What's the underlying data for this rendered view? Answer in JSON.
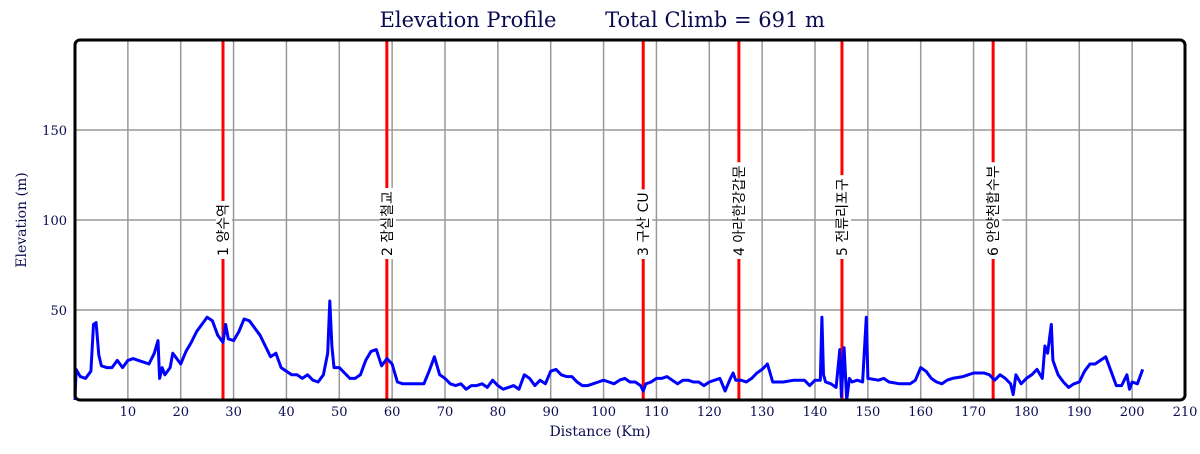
{
  "chart_data": {
    "type": "line",
    "title": "Elevation Profile",
    "subtitle": "Total Climb = 691 m",
    "xlabel": "Distance (Km)",
    "ylabel": "Elevation (m)",
    "xlim": [
      0,
      210
    ],
    "ylim": [
      0,
      200
    ],
    "xticks": [
      10,
      20,
      30,
      40,
      50,
      60,
      70,
      80,
      90,
      100,
      110,
      120,
      130,
      140,
      150,
      160,
      170,
      180,
      190,
      200,
      210
    ],
    "yticks": [
      50,
      100,
      150
    ],
    "grid": true,
    "colors": {
      "line": "#0000ff",
      "checkpoint": "#ff0000",
      "grid": "#999999"
    },
    "checkpoints": [
      {
        "km": 28.0,
        "label": "1 양수역"
      },
      {
        "km": 59.0,
        "label": "2 잠실철교"
      },
      {
        "km": 107.5,
        "label": "3 구산 CU"
      },
      {
        "km": 125.6,
        "label": "4 아라한강갑문"
      },
      {
        "km": 145.1,
        "label": "5 전류리포구"
      },
      {
        "km": 173.7,
        "label": "6 안양천합수부"
      }
    ],
    "points": [
      [
        0,
        0
      ],
      [
        0.2,
        17
      ],
      [
        1,
        13
      ],
      [
        2,
        12
      ],
      [
        3,
        16
      ],
      [
        3.5,
        42
      ],
      [
        4,
        43
      ],
      [
        4.5,
        25
      ],
      [
        5,
        19
      ],
      [
        6,
        18
      ],
      [
        7,
        18
      ],
      [
        8,
        22
      ],
      [
        9,
        18
      ],
      [
        10,
        22
      ],
      [
        11,
        23
      ],
      [
        12,
        22
      ],
      [
        13,
        21
      ],
      [
        14,
        20
      ],
      [
        15,
        26
      ],
      [
        15.7,
        33
      ],
      [
        16,
        12
      ],
      [
        16.5,
        18
      ],
      [
        17,
        14
      ],
      [
        18,
        18
      ],
      [
        18.5,
        26
      ],
      [
        19,
        24
      ],
      [
        20,
        20
      ],
      [
        21,
        27
      ],
      [
        22,
        32
      ],
      [
        23,
        38
      ],
      [
        24,
        42
      ],
      [
        25,
        46
      ],
      [
        26,
        44
      ],
      [
        27,
        36
      ],
      [
        28,
        32
      ],
      [
        28.5,
        42
      ],
      [
        29,
        34
      ],
      [
        30,
        33
      ],
      [
        31,
        38
      ],
      [
        32,
        45
      ],
      [
        33,
        44
      ],
      [
        34,
        40
      ],
      [
        35,
        36
      ],
      [
        36,
        30
      ],
      [
        37,
        24
      ],
      [
        38,
        26
      ],
      [
        39,
        18
      ],
      [
        40,
        16
      ],
      [
        41,
        14
      ],
      [
        42,
        14
      ],
      [
        43,
        12
      ],
      [
        44,
        14
      ],
      [
        45,
        11
      ],
      [
        46,
        10
      ],
      [
        47,
        14
      ],
      [
        47.8,
        26
      ],
      [
        48.2,
        55
      ],
      [
        48.6,
        30
      ],
      [
        49,
        18
      ],
      [
        50,
        18
      ],
      [
        51,
        15
      ],
      [
        52,
        12
      ],
      [
        53,
        12
      ],
      [
        54,
        14
      ],
      [
        55,
        22
      ],
      [
        56,
        27
      ],
      [
        57,
        28
      ],
      [
        58,
        19
      ],
      [
        59,
        23
      ],
      [
        60,
        20
      ],
      [
        61,
        10
      ],
      [
        62,
        9
      ],
      [
        64,
        9
      ],
      [
        66,
        9
      ],
      [
        67,
        16
      ],
      [
        68,
        24
      ],
      [
        69,
        14
      ],
      [
        70,
        12
      ],
      [
        71,
        9
      ],
      [
        72,
        8
      ],
      [
        73,
        9
      ],
      [
        74,
        6
      ],
      [
        75,
        8
      ],
      [
        76,
        8
      ],
      [
        77,
        9
      ],
      [
        78,
        7
      ],
      [
        79,
        11
      ],
      [
        80,
        8
      ],
      [
        81,
        6
      ],
      [
        82,
        7
      ],
      [
        83,
        8
      ],
      [
        84,
        6
      ],
      [
        85,
        14
      ],
      [
        86,
        12
      ],
      [
        87,
        8
      ],
      [
        88,
        11
      ],
      [
        89,
        9
      ],
      [
        90,
        16
      ],
      [
        91,
        17
      ],
      [
        92,
        14
      ],
      [
        93,
        13
      ],
      [
        94,
        13
      ],
      [
        95,
        10
      ],
      [
        96,
        8
      ],
      [
        97,
        8
      ],
      [
        98,
        9
      ],
      [
        99,
        10
      ],
      [
        100,
        11
      ],
      [
        101,
        10
      ],
      [
        102,
        9
      ],
      [
        103,
        11
      ],
      [
        104,
        12
      ],
      [
        105,
        10
      ],
      [
        106,
        10
      ],
      [
        107,
        8
      ],
      [
        107.5,
        5
      ],
      [
        108,
        9
      ],
      [
        109,
        10
      ],
      [
        110,
        12
      ],
      [
        111,
        12
      ],
      [
        112,
        13
      ],
      [
        113,
        11
      ],
      [
        114,
        9
      ],
      [
        115,
        11
      ],
      [
        116,
        11
      ],
      [
        117,
        10
      ],
      [
        118,
        10
      ],
      [
        119,
        8
      ],
      [
        120,
        10
      ],
      [
        121,
        11
      ],
      [
        122,
        12
      ],
      [
        123,
        5
      ],
      [
        124,
        12
      ],
      [
        124.5,
        15
      ],
      [
        125,
        11
      ],
      [
        126,
        11
      ],
      [
        127,
        10
      ],
      [
        128,
        12
      ],
      [
        129,
        15
      ],
      [
        130,
        17
      ],
      [
        131,
        20
      ],
      [
        131.5,
        15
      ],
      [
        132,
        10
      ],
      [
        134,
        10
      ],
      [
        136,
        11
      ],
      [
        138,
        11
      ],
      [
        139,
        8
      ],
      [
        140,
        11
      ],
      [
        141,
        11
      ],
      [
        141.3,
        46
      ],
      [
        141.6,
        14
      ],
      [
        142,
        10
      ],
      [
        143,
        9
      ],
      [
        144,
        7
      ],
      [
        144.7,
        28
      ],
      [
        145,
        2
      ],
      [
        145.5,
        29
      ],
      [
        146,
        0
      ],
      [
        146.5,
        12
      ],
      [
        147,
        10
      ],
      [
        148,
        11
      ],
      [
        149,
        10
      ],
      [
        149.7,
        46
      ],
      [
        150,
        12
      ],
      [
        152,
        11
      ],
      [
        153,
        12
      ],
      [
        154,
        10
      ],
      [
        156,
        9
      ],
      [
        158,
        9
      ],
      [
        159,
        11
      ],
      [
        160,
        18
      ],
      [
        161,
        16
      ],
      [
        162,
        12
      ],
      [
        163,
        10
      ],
      [
        164,
        9
      ],
      [
        165,
        11
      ],
      [
        166,
        12
      ],
      [
        168,
        13
      ],
      [
        170,
        15
      ],
      [
        172,
        15
      ],
      [
        173,
        14
      ],
      [
        174,
        11
      ],
      [
        175,
        14
      ],
      [
        176,
        12
      ],
      [
        177,
        9
      ],
      [
        177.5,
        3
      ],
      [
        178,
        14
      ],
      [
        179,
        9
      ],
      [
        180,
        12
      ],
      [
        181,
        14
      ],
      [
        182,
        17
      ],
      [
        183,
        12
      ],
      [
        183.5,
        30
      ],
      [
        184,
        26
      ],
      [
        184.7,
        42
      ],
      [
        185,
        22
      ],
      [
        185.5,
        18
      ],
      [
        186,
        14
      ],
      [
        187,
        10
      ],
      [
        188,
        7
      ],
      [
        189,
        9
      ],
      [
        190,
        10
      ],
      [
        191,
        16
      ],
      [
        192,
        20
      ],
      [
        193,
        20
      ],
      [
        194,
        22
      ],
      [
        195,
        24
      ],
      [
        196,
        16
      ],
      [
        197,
        8
      ],
      [
        198,
        8
      ],
      [
        199,
        14
      ],
      [
        199.5,
        6
      ],
      [
        200,
        10
      ],
      [
        201,
        9
      ],
      [
        202,
        17
      ]
    ]
  }
}
